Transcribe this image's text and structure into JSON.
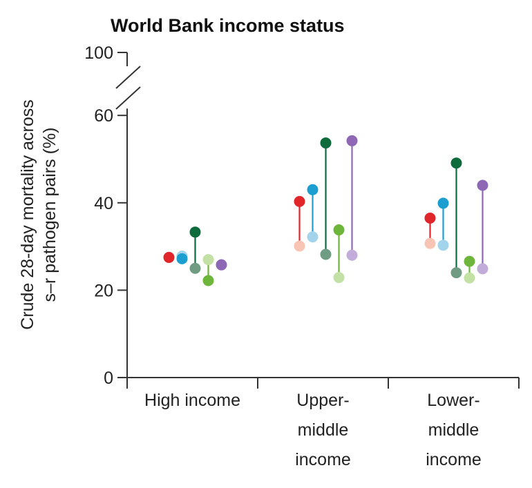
{
  "chart_data": {
    "type": "dumbbell",
    "title": "World Bank income status",
    "ylabel_lines": [
      "Crude 28-day mortality across",
      "s–r pathogen pairs (%)"
    ],
    "y_ticks": [
      {
        "value": 0,
        "label": "0"
      },
      {
        "value": 20,
        "label": "20"
      },
      {
        "value": 40,
        "label": "40"
      },
      {
        "value": 60,
        "label": "60"
      },
      {
        "value": 100,
        "label": "100"
      }
    ],
    "ylim": [
      0,
      100
    ],
    "axis_break": {
      "from": 60,
      "to": 100
    },
    "categories": [
      {
        "key": "high",
        "lines": [
          "High income"
        ]
      },
      {
        "key": "upper_middle",
        "lines": [
          "Upper-",
          "middle",
          "income"
        ]
      },
      {
        "key": "lower_middle",
        "lines": [
          "Lower-",
          "middle",
          "income"
        ]
      }
    ],
    "series_colors": [
      {
        "strong": "#e0262b",
        "light": "#f8c4b4"
      },
      {
        "strong": "#1c9fd0",
        "light": "#a3d4ec"
      },
      {
        "strong": "#0e6b3c",
        "light": "#6f9c82"
      },
      {
        "strong": "#6eb53c",
        "light": "#c3e1a4"
      },
      {
        "strong": "#8f68b5",
        "light": "#c2acd9"
      }
    ],
    "groups": [
      {
        "category": "high",
        "pairs": [
          {
            "series": 0,
            "resistant": 27.5,
            "susceptible": 27.5
          },
          {
            "series": 1,
            "resistant": 27.2,
            "susceptible": 27.8
          },
          {
            "series": 2,
            "resistant": 33.3,
            "susceptible": 25.0
          },
          {
            "series": 3,
            "resistant": 22.2,
            "susceptible": 27.0
          },
          {
            "series": 4,
            "resistant": 25.8,
            "susceptible": 25.8
          }
        ]
      },
      {
        "category": "upper_middle",
        "pairs": [
          {
            "series": 0,
            "resistant": 40.3,
            "susceptible": 30.1
          },
          {
            "series": 1,
            "resistant": 43.0,
            "susceptible": 32.2
          },
          {
            "series": 2,
            "resistant": 53.7,
            "susceptible": 28.2
          },
          {
            "series": 3,
            "resistant": 33.8,
            "susceptible": 22.9
          },
          {
            "series": 4,
            "resistant": 54.2,
            "susceptible": 28.0
          }
        ]
      },
      {
        "category": "lower_middle",
        "pairs": [
          {
            "series": 0,
            "resistant": 36.5,
            "susceptible": 30.7
          },
          {
            "series": 1,
            "resistant": 39.9,
            "susceptible": 30.3
          },
          {
            "series": 2,
            "resistant": 49.1,
            "susceptible": 24.0
          },
          {
            "series": 3,
            "resistant": 26.6,
            "susceptible": 22.8
          },
          {
            "series": 4,
            "resistant": 44.0,
            "susceptible": 24.9
          }
        ]
      }
    ]
  }
}
